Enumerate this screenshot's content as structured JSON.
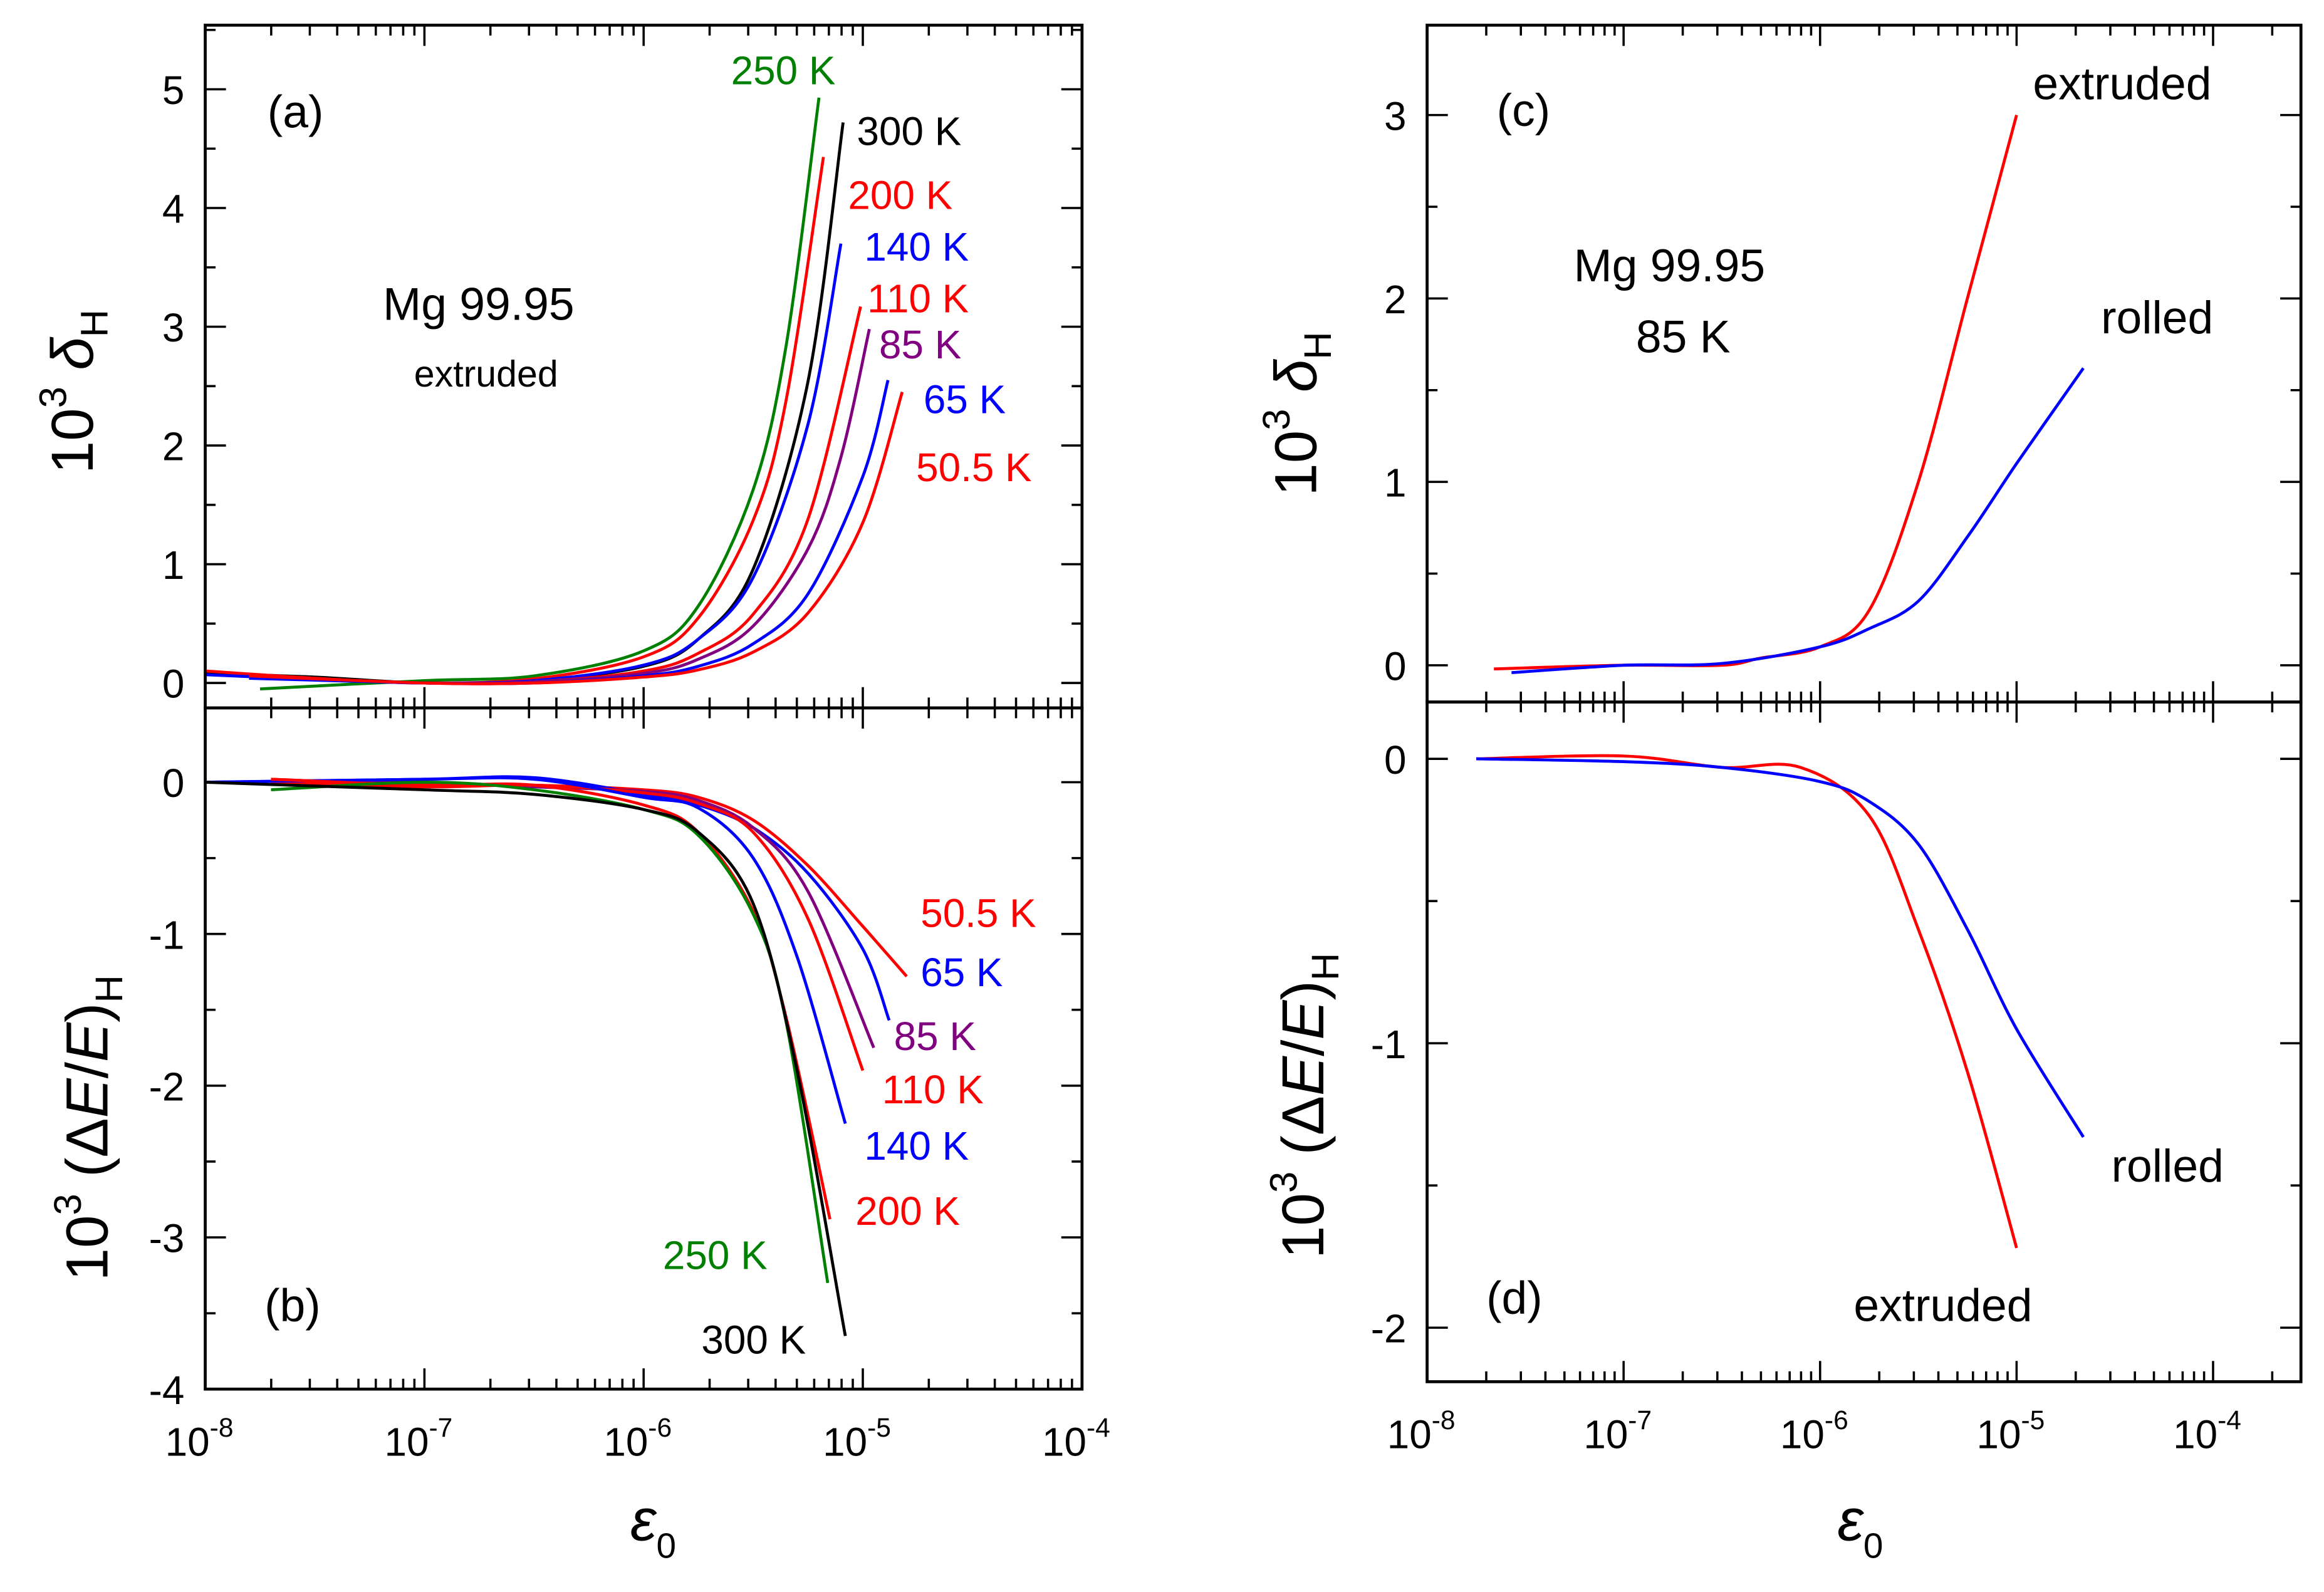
{
  "colors": {
    "red": "#ff0000",
    "blue": "#0000ff",
    "green": "#008000",
    "purple": "#800080",
    "black": "#000000"
  },
  "chart_data": [
    {
      "id": "a",
      "type": "line",
      "panel_label": "(a)",
      "annotation": [
        "Mg 99.95",
        "extruded"
      ],
      "xlabel": "ε0",
      "ylabel": "10^3 δH",
      "xscale": "log",
      "xlim": [
        1e-08,
        0.0001
      ],
      "ylim": [
        -0.21,
        5.54
      ],
      "yticks": [
        0,
        1,
        2,
        3,
        4,
        5
      ],
      "xticks": [
        {
          "base": "10",
          "exp": "-8"
        },
        {
          "base": "10",
          "exp": "-7"
        },
        {
          "base": "10",
          "exp": "-6"
        },
        {
          "base": "10",
          "exp": "-5"
        },
        {
          "base": "10",
          "exp": "-4"
        }
      ],
      "series": [
        {
          "name": "250 K",
          "color": "green",
          "points": [
            [
              -7.75,
              -0.05
            ],
            [
              -7,
              0.02
            ],
            [
              -6.5,
              0.06
            ],
            [
              -6,
              0.27
            ],
            [
              -5.75,
              0.65
            ],
            [
              -5.5,
              1.63
            ],
            [
              -5.35,
              2.84
            ],
            [
              -5.2,
              4.93
            ]
          ]
        },
        {
          "name": "300 K",
          "color": "black",
          "points": [
            [
              -8,
              0.08
            ],
            [
              -7.5,
              0.05
            ],
            [
              -7,
              0.0
            ],
            [
              -6.5,
              0.02
            ],
            [
              -6,
              0.14
            ],
            [
              -5.75,
              0.37
            ],
            [
              -5.5,
              0.96
            ],
            [
              -5.25,
              2.54
            ],
            [
              -5.09,
              4.72
            ]
          ]
        },
        {
          "name": "200 K",
          "color": "red",
          "points": [
            [
              -8,
              0.1
            ],
            [
              -7.5,
              0.04
            ],
            [
              -7,
              0.0
            ],
            [
              -6.5,
              0.035
            ],
            [
              -6,
              0.22
            ],
            [
              -5.75,
              0.55
            ],
            [
              -5.5,
              1.37
            ],
            [
              -5.35,
              2.38
            ],
            [
              -5.18,
              4.43
            ]
          ]
        },
        {
          "name": "140 K",
          "color": "blue",
          "points": [
            [
              -8,
              0.07
            ],
            [
              -7.5,
              0.03
            ],
            [
              -7,
              0.0
            ],
            [
              -6.5,
              0.02
            ],
            [
              -6,
              0.15
            ],
            [
              -5.75,
              0.37
            ],
            [
              -5.5,
              0.89
            ],
            [
              -5.25,
              2.18
            ],
            [
              -5.1,
              3.7
            ]
          ]
        },
        {
          "name": "110 K",
          "color": "red",
          "points": [
            [
              -7.8,
              0.06
            ],
            [
              -7,
              0.0
            ],
            [
              -6.5,
              0.01
            ],
            [
              -6,
              0.1
            ],
            [
              -5.75,
              0.25
            ],
            [
              -5.5,
              0.58
            ],
            [
              -5.25,
              1.38
            ],
            [
              -5.01,
              3.17
            ]
          ]
        },
        {
          "name": "85 K",
          "color": "purple",
          "points": [
            [
              -7.8,
              0.05
            ],
            [
              -7,
              0.0
            ],
            [
              -6.5,
              0.01
            ],
            [
              -6,
              0.08
            ],
            [
              -5.75,
              0.2
            ],
            [
              -5.5,
              0.48
            ],
            [
              -5.25,
              1.13
            ],
            [
              -5.1,
              1.9
            ],
            [
              -4.97,
              2.98
            ]
          ]
        },
        {
          "name": "65 K",
          "color": "blue",
          "points": [
            [
              -7.8,
              0.04
            ],
            [
              -7,
              0.0
            ],
            [
              -6.5,
              0.0
            ],
            [
              -6,
              0.06
            ],
            [
              -5.75,
              0.14
            ],
            [
              -5.5,
              0.33
            ],
            [
              -5.25,
              0.75
            ],
            [
              -5,
              1.74
            ],
            [
              -4.885,
              2.55
            ]
          ]
        },
        {
          "name": "50.5 K",
          "color": "red",
          "points": [
            [
              -7.8,
              0.06
            ],
            [
              -7,
              0.0
            ],
            [
              -6.5,
              0.0
            ],
            [
              -6,
              0.05
            ],
            [
              -5.75,
              0.11
            ],
            [
              -5.5,
              0.26
            ],
            [
              -5.25,
              0.59
            ],
            [
              -5,
              1.35
            ],
            [
              -4.82,
              2.45
            ]
          ]
        }
      ]
    },
    {
      "id": "b",
      "type": "line",
      "panel_label": "(b)",
      "xlabel": "ε0",
      "ylabel": "10^3 (ΔE/E)H",
      "xscale": "log",
      "xlim": [
        1e-08,
        0.0001
      ],
      "ylim": [
        -4,
        0.49
      ],
      "yticks": [
        0,
        -1,
        -2,
        -3,
        -4
      ],
      "xticks": [
        {
          "base": "10",
          "exp": "-8"
        },
        {
          "base": "10",
          "exp": "-7"
        },
        {
          "base": "10",
          "exp": "-6"
        },
        {
          "base": "10",
          "exp": "-5"
        },
        {
          "base": "10",
          "exp": "-4"
        }
      ],
      "series": [
        {
          "name": "50.5 K",
          "color": "red",
          "points": [
            [
              -7.7,
              0.02
            ],
            [
              -7,
              -0.02
            ],
            [
              -6.5,
              -0.02
            ],
            [
              -6,
              -0.05
            ],
            [
              -5.75,
              -0.1
            ],
            [
              -5.5,
              -0.25
            ],
            [
              -5.25,
              -0.55
            ],
            [
              -5,
              -0.95
            ],
            [
              -4.8,
              -1.28
            ]
          ]
        },
        {
          "name": "65 K",
          "color": "blue",
          "points": [
            [
              -8,
              0
            ],
            [
              -7,
              0.02
            ],
            [
              -6.5,
              0.03
            ],
            [
              -6,
              -0.08
            ],
            [
              -5.75,
              -0.15
            ],
            [
              -5.5,
              -0.3
            ],
            [
              -5.25,
              -0.6
            ],
            [
              -5,
              -1.1
            ],
            [
              -4.88,
              -1.57
            ]
          ]
        },
        {
          "name": "85 K",
          "color": "purple",
          "points": [
            [
              -7.7,
              0
            ],
            [
              -7,
              0
            ],
            [
              -6.5,
              -0.03
            ],
            [
              -6,
              -0.06
            ],
            [
              -5.75,
              -0.12
            ],
            [
              -5.5,
              -0.3
            ],
            [
              -5.25,
              -0.72
            ],
            [
              -4.95,
              -1.75
            ]
          ]
        },
        {
          "name": "110 K",
          "color": "red",
          "points": [
            [
              -7.7,
              0
            ],
            [
              -7,
              -0.03
            ],
            [
              -6.5,
              -0.02
            ],
            [
              -6,
              -0.07
            ],
            [
              -5.75,
              -0.14
            ],
            [
              -5.5,
              -0.33
            ],
            [
              -5.25,
              -0.9
            ],
            [
              -5.0,
              -1.9
            ]
          ]
        },
        {
          "name": "140 K",
          "color": "blue",
          "points": [
            [
              -8,
              0
            ],
            [
              -7,
              0.02
            ],
            [
              -6.5,
              0.02
            ],
            [
              -6,
              -0.1
            ],
            [
              -5.75,
              -0.17
            ],
            [
              -5.5,
              -0.5
            ],
            [
              -5.3,
              -1.15
            ],
            [
              -5.08,
              -2.25
            ]
          ]
        },
        {
          "name": "200 K",
          "color": "red",
          "points": [
            [
              -7.7,
              0.02
            ],
            [
              -7,
              -0.02
            ],
            [
              -6.5,
              -0.02
            ],
            [
              -6,
              -0.15
            ],
            [
              -5.75,
              -0.33
            ],
            [
              -5.5,
              -0.85
            ],
            [
              -5.35,
              -1.55
            ],
            [
              -5.15,
              -2.88
            ]
          ]
        },
        {
          "name": "250 K",
          "color": "green",
          "points": [
            [
              -7.7,
              -0.05
            ],
            [
              -7,
              0
            ],
            [
              -6.5,
              -0.05
            ],
            [
              -6,
              -0.18
            ],
            [
              -5.75,
              -0.35
            ],
            [
              -5.5,
              -0.87
            ],
            [
              -5.35,
              -1.58
            ],
            [
              -5.16,
              -3.3
            ]
          ]
        },
        {
          "name": "300 K",
          "color": "black",
          "points": [
            [
              -8,
              0
            ],
            [
              -7,
              -0.05
            ],
            [
              -6.5,
              -0.08
            ],
            [
              -6,
              -0.18
            ],
            [
              -5.75,
              -0.33
            ],
            [
              -5.5,
              -0.8
            ],
            [
              -5.3,
              -1.9
            ],
            [
              -5.08,
              -3.65
            ]
          ]
        }
      ]
    },
    {
      "id": "c",
      "type": "line",
      "panel_label": "(c)",
      "annotation": [
        "Mg 99.95",
        "85 K"
      ],
      "xlabel": "ε0",
      "ylabel": "10^3 δH",
      "xscale": "log",
      "xlim": [
        1e-08,
        0.00028
      ],
      "ylim": [
        -0.2,
        3.49
      ],
      "yticks": [
        0,
        1,
        2,
        3
      ],
      "xticks": [
        {
          "base": "10",
          "exp": "-8"
        },
        {
          "base": "10",
          "exp": "-7"
        },
        {
          "base": "10",
          "exp": "-6"
        },
        {
          "base": "10",
          "exp": "-5"
        },
        {
          "base": "10",
          "exp": "-4"
        }
      ],
      "series": [
        {
          "name": "extruded",
          "color": "red",
          "points": [
            [
              -7.66,
              -0.02
            ],
            [
              -7,
              0.0
            ],
            [
              -6.5,
              0.0
            ],
            [
              -6.3,
              0.04
            ],
            [
              -6,
              0.1
            ],
            [
              -5.75,
              0.3
            ],
            [
              -5.5,
              1.0
            ],
            [
              -5.25,
              2.0
            ],
            [
              -5.0,
              3.0
            ]
          ]
        },
        {
          "name": "rolled",
          "color": "blue",
          "points": [
            [
              -7.57,
              -0.04
            ],
            [
              -7,
              0.0
            ],
            [
              -6.5,
              0.01
            ],
            [
              -6,
              0.1
            ],
            [
              -5.75,
              0.2
            ],
            [
              -5.5,
              0.35
            ],
            [
              -5.25,
              0.7
            ],
            [
              -5,
              1.1
            ],
            [
              -4.66,
              1.62
            ]
          ]
        }
      ]
    },
    {
      "id": "d",
      "type": "line",
      "panel_label": "(d)",
      "xlabel": "ε0",
      "ylabel": "10^3 (ΔE/E)H",
      "xscale": "log",
      "xlim": [
        1e-08,
        0.00028
      ],
      "ylim": [
        -2.19,
        0.2
      ],
      "yticks": [
        0,
        -1,
        -2
      ],
      "xticks": [
        {
          "base": "10",
          "exp": "-8"
        },
        {
          "base": "10",
          "exp": "-7"
        },
        {
          "base": "10",
          "exp": "-6"
        },
        {
          "base": "10",
          "exp": "-5"
        },
        {
          "base": "10",
          "exp": "-4"
        }
      ],
      "series": [
        {
          "name": "extruded",
          "color": "red",
          "points": [
            [
              -7.75,
              0
            ],
            [
              -7,
              0.01
            ],
            [
              -6.5,
              -0.03
            ],
            [
              -6.1,
              -0.03
            ],
            [
              -5.75,
              -0.2
            ],
            [
              -5.5,
              -0.6
            ],
            [
              -5.25,
              -1.1
            ],
            [
              -5.0,
              -1.72
            ]
          ]
        },
        {
          "name": "rolled",
          "color": "blue",
          "points": [
            [
              -7.75,
              0
            ],
            [
              -7,
              -0.01
            ],
            [
              -6.5,
              -0.03
            ],
            [
              -6,
              -0.08
            ],
            [
              -5.75,
              -0.15
            ],
            [
              -5.5,
              -0.3
            ],
            [
              -5.25,
              -0.6
            ],
            [
              -5,
              -0.95
            ],
            [
              -4.66,
              -1.33
            ]
          ]
        }
      ]
    }
  ]
}
